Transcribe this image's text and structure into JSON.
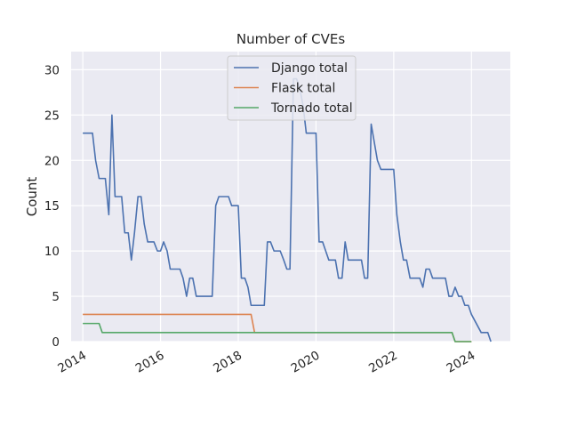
{
  "chart_data": {
    "type": "line",
    "title": "Number of CVEs",
    "xlabel": "",
    "ylabel": "Count",
    "xlim": [
      2013.7,
      2025.0
    ],
    "ylim": [
      0,
      32
    ],
    "x_ticks": [
      2014,
      2016,
      2018,
      2020,
      2022,
      2024
    ],
    "y_ticks": [
      0,
      5,
      10,
      15,
      20,
      25,
      30
    ],
    "grid": true,
    "legend_position": "top-center",
    "background": "#eaeaf2",
    "series": [
      {
        "name": "Django total",
        "color": "#4c72b0",
        "points": [
          [
            2014.0,
            23
          ],
          [
            2014.25,
            23
          ],
          [
            2014.33,
            20
          ],
          [
            2014.42,
            18
          ],
          [
            2014.58,
            18
          ],
          [
            2014.67,
            14
          ],
          [
            2014.75,
            25
          ],
          [
            2014.83,
            16
          ],
          [
            2015.0,
            16
          ],
          [
            2015.08,
            12
          ],
          [
            2015.17,
            12
          ],
          [
            2015.25,
            9
          ],
          [
            2015.33,
            12
          ],
          [
            2015.42,
            16
          ],
          [
            2015.5,
            16
          ],
          [
            2015.58,
            13
          ],
          [
            2015.67,
            11
          ],
          [
            2015.83,
            11
          ],
          [
            2015.92,
            10
          ],
          [
            2016.0,
            10
          ],
          [
            2016.08,
            11
          ],
          [
            2016.17,
            10
          ],
          [
            2016.25,
            8
          ],
          [
            2016.5,
            8
          ],
          [
            2016.58,
            7
          ],
          [
            2016.67,
            5
          ],
          [
            2016.75,
            7
          ],
          [
            2016.83,
            7
          ],
          [
            2016.92,
            5
          ],
          [
            2017.33,
            5
          ],
          [
            2017.42,
            15
          ],
          [
            2017.5,
            16
          ],
          [
            2017.75,
            16
          ],
          [
            2017.83,
            15
          ],
          [
            2018.0,
            15
          ],
          [
            2018.08,
            7
          ],
          [
            2018.17,
            7
          ],
          [
            2018.25,
            6
          ],
          [
            2018.33,
            4
          ],
          [
            2018.67,
            4
          ],
          [
            2018.75,
            11
          ],
          [
            2018.83,
            11
          ],
          [
            2018.92,
            10
          ],
          [
            2019.08,
            10
          ],
          [
            2019.17,
            9
          ],
          [
            2019.25,
            8
          ],
          [
            2019.33,
            8
          ],
          [
            2019.42,
            29
          ],
          [
            2019.5,
            29
          ],
          [
            2019.58,
            28
          ],
          [
            2019.67,
            26
          ],
          [
            2019.75,
            23
          ],
          [
            2020.0,
            23
          ],
          [
            2020.08,
            11
          ],
          [
            2020.17,
            11
          ],
          [
            2020.25,
            10
          ],
          [
            2020.33,
            9
          ],
          [
            2020.5,
            9
          ],
          [
            2020.58,
            7
          ],
          [
            2020.67,
            7
          ],
          [
            2020.75,
            11
          ],
          [
            2020.83,
            9
          ],
          [
            2021.17,
            9
          ],
          [
            2021.25,
            7
          ],
          [
            2021.33,
            7
          ],
          [
            2021.42,
            24
          ],
          [
            2021.5,
            22
          ],
          [
            2021.58,
            20
          ],
          [
            2021.67,
            19
          ],
          [
            2022.0,
            19
          ],
          [
            2022.08,
            14
          ],
          [
            2022.17,
            11
          ],
          [
            2022.25,
            9
          ],
          [
            2022.33,
            9
          ],
          [
            2022.42,
            7
          ],
          [
            2022.67,
            7
          ],
          [
            2022.75,
            6
          ],
          [
            2022.83,
            8
          ],
          [
            2022.92,
            8
          ],
          [
            2023.0,
            7
          ],
          [
            2023.33,
            7
          ],
          [
            2023.42,
            5
          ],
          [
            2023.5,
            5
          ],
          [
            2023.58,
            6
          ],
          [
            2023.67,
            5
          ],
          [
            2023.75,
            5
          ],
          [
            2023.83,
            4
          ],
          [
            2023.92,
            4
          ],
          [
            2024.0,
            3
          ],
          [
            2024.25,
            1
          ],
          [
            2024.42,
            1
          ],
          [
            2024.5,
            0
          ]
        ]
      },
      {
        "name": "Flask total",
        "color": "#dd8452",
        "points": [
          [
            2014.0,
            3
          ],
          [
            2018.33,
            3
          ],
          [
            2018.42,
            1
          ],
          [
            2023.5,
            1
          ],
          [
            2023.58,
            0
          ],
          [
            2024.0,
            0
          ]
        ]
      },
      {
        "name": "Tornado total",
        "color": "#55a868",
        "points": [
          [
            2014.0,
            2
          ],
          [
            2014.42,
            2
          ],
          [
            2014.5,
            1
          ],
          [
            2023.5,
            1
          ],
          [
            2023.58,
            0
          ],
          [
            2024.0,
            0
          ]
        ]
      }
    ]
  }
}
